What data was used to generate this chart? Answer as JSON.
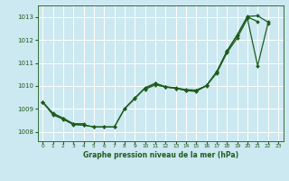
{
  "title": "Graphe pression niveau de la mer (hPa)",
  "bg_color": "#cce8f0",
  "grid_color": "#ffffff",
  "line_color": "#1e5c1e",
  "x_ticks": [
    0,
    1,
    2,
    3,
    4,
    5,
    6,
    7,
    8,
    9,
    10,
    11,
    12,
    13,
    14,
    15,
    16,
    17,
    18,
    19,
    20,
    21,
    22,
    23
  ],
  "y_ticks": [
    1008,
    1009,
    1010,
    1011,
    1012,
    1013
  ],
  "ylim": [
    1007.6,
    1013.5
  ],
  "xlim": [
    -0.5,
    23.5
  ],
  "series": [
    {
      "x": [
        0,
        1,
        2,
        3,
        4,
        5,
        6,
        7,
        8,
        9,
        10,
        11,
        12,
        13,
        14,
        15,
        16,
        17,
        18,
        19,
        20,
        21
      ],
      "y": [
        1009.3,
        1008.75,
        1008.55,
        1008.35,
        1008.3,
        1008.22,
        1008.22,
        1008.22,
        1009.0,
        1009.45,
        1009.9,
        1010.1,
        1009.95,
        1009.9,
        1009.82,
        1009.8,
        1010.0,
        1010.6,
        1011.5,
        1012.2,
        1013.0,
        1012.8
      ]
    },
    {
      "x": [
        0,
        1,
        2,
        3,
        4
      ],
      "y": [
        1009.3,
        1008.82,
        1008.62,
        1008.38,
        1008.38
      ]
    },
    {
      "x": [
        0,
        1,
        2,
        3,
        4,
        5,
        6,
        7,
        8,
        9,
        10,
        11,
        12,
        13,
        14,
        15,
        16,
        17,
        18,
        19,
        20,
        21,
        22
      ],
      "y": [
        1009.3,
        1008.78,
        1008.58,
        1008.36,
        1008.32,
        1008.24,
        1008.24,
        1008.24,
        1009.02,
        1009.48,
        1009.92,
        1010.12,
        1009.97,
        1009.92,
        1009.84,
        1009.82,
        1010.02,
        1010.62,
        1011.52,
        1012.22,
        1013.02,
        1013.05,
        1012.78
      ]
    },
    {
      "x": [
        10,
        11,
        12,
        13,
        14,
        15,
        16,
        17,
        18,
        19,
        20,
        21,
        22
      ],
      "y": [
        1009.88,
        1010.05,
        1009.98,
        1009.92,
        1009.82,
        1009.78,
        1010.04,
        1010.58,
        1011.46,
        1012.1,
        1012.95,
        1010.9,
        1012.72
      ]
    }
  ]
}
